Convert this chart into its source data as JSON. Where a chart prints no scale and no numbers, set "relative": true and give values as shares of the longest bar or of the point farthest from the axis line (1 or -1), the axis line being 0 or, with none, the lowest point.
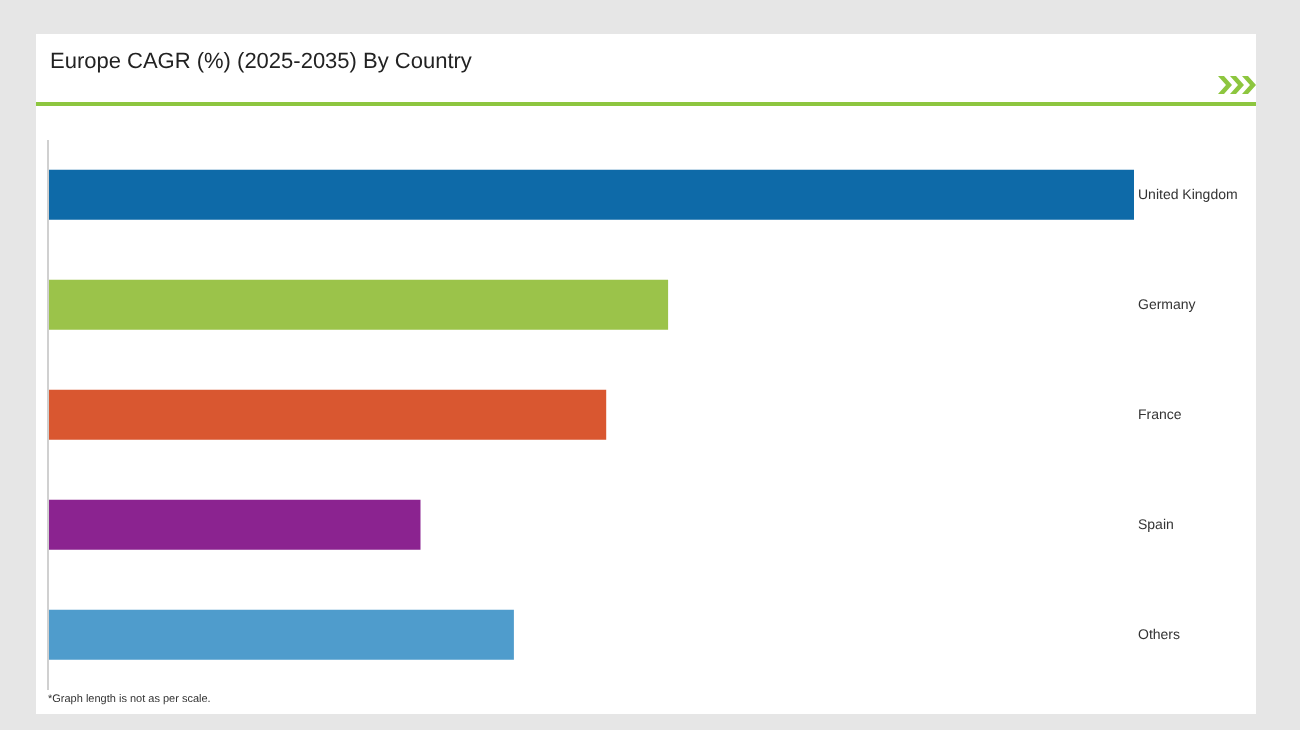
{
  "chart_data": {
    "type": "bar",
    "orientation": "horizontal",
    "relative": true,
    "title": "Europe CAGR (%) (2025-2035) By Country",
    "categories": [
      "United Kingdom",
      "Germany",
      "France",
      "Spain",
      "Others"
    ],
    "values": [
      1,
      0.571,
      0.514,
      0.343,
      0.429
    ],
    "colors": [
      "#0e6aa8",
      "#9bc34a",
      "#d95730",
      "#8b2390",
      "#4f9ccc"
    ],
    "annotations": [
      "*Graph length is not as per scale."
    ]
  }
}
